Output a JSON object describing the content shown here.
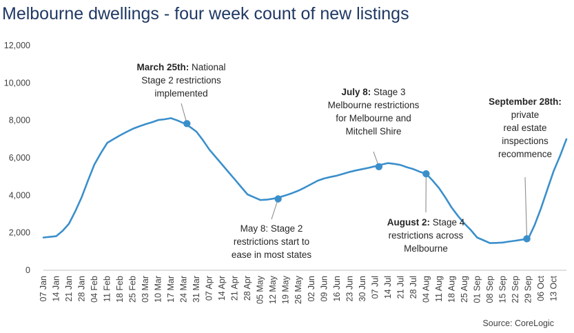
{
  "chart_data": {
    "type": "line",
    "title": "Melbourne dwellings - four week count of new listings",
    "xlabel": "",
    "ylabel": "",
    "ylim": [
      0,
      12000
    ],
    "yticks": [
      0,
      2000,
      4000,
      6000,
      8000,
      10000,
      12000
    ],
    "ytick_labels": [
      "0",
      "2,000",
      "4,000",
      "6,000",
      "8,000",
      "10,000",
      "12,000"
    ],
    "categories": [
      "07 Jan",
      "14 Jan",
      "21 Jan",
      "28 Jan",
      "04 Feb",
      "11 Feb",
      "18 Feb",
      "25 Feb",
      "03 Mar",
      "10 Mar",
      "17 Mar",
      "24 Mar",
      "31 Mar",
      "07 Apr",
      "14 Apr",
      "21 Apr",
      "28 Apr",
      "05 May",
      "12 May",
      "19 May",
      "26 May",
      "02 Jun",
      "09 Jun",
      "16 Jun",
      "23 Jun",
      "30 Jun",
      "07 Jul",
      "14 Jul",
      "21 Jul",
      "28 Jul",
      "04 Aug",
      "11 Aug",
      "18 Aug",
      "25 Aug",
      "01 Sep",
      "08 Sep",
      "15 Sep",
      "22 Sep",
      "29 Sep",
      "06 Oct",
      "13 Oct"
    ],
    "x": [
      0,
      1,
      2,
      3,
      4,
      5,
      6,
      7,
      8,
      9,
      10,
      11,
      12,
      13,
      14,
      15,
      16,
      17,
      18,
      19,
      20,
      21,
      22,
      23,
      24,
      25,
      26,
      27,
      28,
      29,
      30,
      31,
      32,
      33,
      34,
      35,
      36,
      37,
      38,
      39,
      40,
      41,
      42,
      43,
      44,
      45,
      46,
      47,
      48,
      49,
      50,
      51,
      52,
      53,
      54,
      55,
      56,
      57,
      58,
      59,
      60,
      61,
      62,
      63,
      64,
      65,
      66,
      67,
      68,
      69,
      70,
      71,
      72,
      73,
      74,
      75,
      76,
      77,
      78,
      79,
      80,
      81,
      82
    ],
    "series": [
      {
        "color": "#3a8fcb",
        "values": [
          1750,
          1780,
          1820,
          2100,
          2480,
          3150,
          3900,
          4800,
          5650,
          6250,
          6800,
          7000,
          7200,
          7380,
          7550,
          7680,
          7800,
          7900,
          8020,
          8060,
          8120,
          8000,
          7850,
          7650,
          7400,
          6950,
          6450,
          6050,
          5650,
          5250,
          4850,
          4450,
          4050,
          3900,
          3750,
          3770,
          3820,
          3900,
          4000,
          4120,
          4250,
          4420,
          4600,
          4780,
          4900,
          4980,
          5050,
          5150,
          5250,
          5330,
          5400,
          5470,
          5550,
          5640,
          5720,
          5680,
          5620,
          5500,
          5400,
          5260,
          5150,
          4800,
          4400,
          3900,
          3350,
          2900,
          2500,
          2150,
          1750,
          1600,
          1450,
          1460,
          1480,
          1530,
          1580,
          1630,
          1680,
          2400,
          3300,
          4300,
          5300,
          6100,
          7000
        ]
      }
    ],
    "annotations": [
      {
        "id": "mar25",
        "x": 22.5,
        "y": 7830,
        "bold": "March 25th:",
        "lines": [
          "March 25th: National",
          "Stage 2 restrictions",
          "implemented"
        ]
      },
      {
        "id": "may8",
        "x": 36.8,
        "y": 3810,
        "bold": "",
        "lines": [
          "May 8: Stage 2",
          "restrictions start to",
          "ease in most states"
        ]
      },
      {
        "id": "jul8",
        "x": 52.6,
        "y": 5530,
        "bold": "July 8:",
        "lines": [
          "July 8: Stage 3",
          "Melbourne  restrictions",
          "for Melbourne  and",
          "Mitchell Shire"
        ]
      },
      {
        "id": "aug2",
        "x": 60,
        "y": 5150,
        "bold": "August 2:",
        "lines": [
          "August 2: Stage 4",
          "restrictions across",
          "Melbourne"
        ]
      },
      {
        "id": "sep28",
        "x": 75.8,
        "y": 1680,
        "bold": "September 28th:",
        "lines": [
          "September 28th:",
          "private",
          "real estate",
          "inspections",
          "recommence"
        ]
      }
    ],
    "grid": false,
    "legend": "none",
    "source": "Source: CoreLogic"
  }
}
